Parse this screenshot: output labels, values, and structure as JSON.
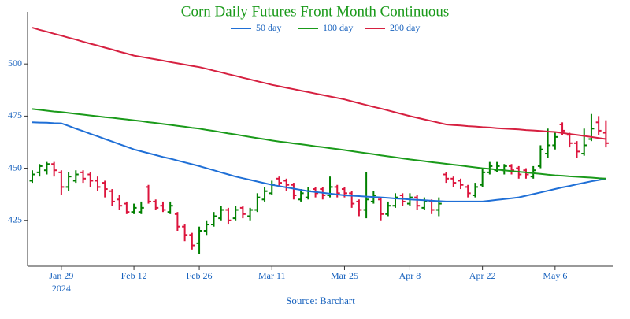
{
  "chart_data": {
    "type": "ohlc",
    "title": "Corn Daily Futures Front Month Continuous",
    "source": "Source: Barchart",
    "year": "2024",
    "categories": [
      null,
      null,
      null,
      null,
      "Jan 29",
      null,
      null,
      null,
      null,
      null,
      null,
      null,
      null,
      null,
      "Feb 12",
      null,
      null,
      null,
      null,
      null,
      null,
      null,
      null,
      "Feb 26",
      null,
      null,
      null,
      null,
      null,
      null,
      null,
      null,
      null,
      "Mar 11",
      null,
      null,
      null,
      null,
      null,
      null,
      null,
      null,
      null,
      "Mar 25",
      null,
      null,
      null,
      null,
      null,
      null,
      null,
      null,
      "Apr 8",
      null,
      null,
      null,
      null,
      null,
      null,
      null,
      null,
      null,
      "Apr 22",
      null,
      null,
      null,
      null,
      null,
      null,
      null,
      null,
      null,
      "May 6",
      null,
      null,
      null,
      null,
      null,
      null,
      null
    ],
    "ohlc": {
      "up_color": "#008000",
      "down_color": "#dc143c",
      "open": [
        444,
        448,
        449,
        452,
        448,
        441,
        444,
        448,
        447,
        444,
        443,
        439,
        435,
        433,
        429,
        429,
        441,
        434,
        432,
        429,
        428,
        422,
        418,
        414,
        420,
        423,
        426,
        430,
        426,
        431,
        427,
        430,
        435,
        438,
        445,
        444,
        442,
        435,
        436,
        440,
        440,
        437,
        441,
        440,
        438,
        434,
        430,
        434,
        435,
        428,
        432,
        437,
        433,
        436,
        431,
        434,
        430,
        447,
        445,
        444,
        441,
        437,
        442,
        448,
        449,
        449,
        451,
        450,
        449,
        446,
        451,
        457,
        461,
        471,
        466,
        462,
        457,
        464,
        472,
        467
      ],
      "high": [
        449,
        452,
        453,
        453,
        449,
        448,
        449,
        449,
        448,
        446,
        444,
        440,
        437,
        434,
        433,
        434,
        442,
        435,
        434,
        434,
        429,
        423,
        419,
        422,
        425,
        429,
        432,
        431,
        432,
        432,
        431,
        438,
        441,
        444,
        446,
        445,
        443,
        440,
        441,
        441,
        441,
        446,
        442,
        441,
        439,
        435,
        448,
        439,
        436,
        434,
        438,
        438,
        438,
        437,
        436,
        435,
        436,
        448,
        446,
        445,
        442,
        443,
        450,
        453,
        453,
        452,
        452,
        451,
        450,
        451,
        461,
        469,
        467,
        472,
        467,
        463,
        469,
        476,
        475,
        473
      ],
      "low": [
        443,
        446,
        447,
        446,
        437,
        439,
        443,
        443,
        441,
        439,
        436,
        432,
        430,
        428,
        428,
        428,
        433,
        430,
        429,
        428,
        420,
        415,
        411,
        409,
        418,
        422,
        425,
        423,
        425,
        426,
        425,
        429,
        434,
        437,
        441,
        439,
        435,
        434,
        435,
        436,
        435,
        436,
        436,
        436,
        431,
        427,
        426,
        433,
        425,
        427,
        431,
        432,
        432,
        430,
        430,
        428,
        427,
        443,
        441,
        440,
        436,
        436,
        441,
        447,
        448,
        447,
        447,
        445,
        445,
        445,
        450,
        455,
        459,
        466,
        460,
        455,
        456,
        463,
        466,
        460
      ],
      "close": [
        447,
        451,
        452,
        449,
        441,
        446,
        447,
        445,
        444,
        441,
        440,
        434,
        432,
        429,
        431,
        431,
        434,
        431,
        430,
        432,
        422,
        418,
        413,
        420,
        423,
        427,
        430,
        425,
        430,
        428,
        430,
        436,
        439,
        442,
        443,
        442,
        437,
        438,
        439,
        438,
        437,
        441,
        438,
        438,
        433,
        430,
        435,
        437,
        428,
        432,
        436,
        434,
        436,
        432,
        434,
        430,
        433,
        445,
        443,
        442,
        438,
        441,
        448,
        451,
        451,
        451,
        449,
        447,
        447,
        449,
        459,
        461,
        465,
        468,
        462,
        458,
        461,
        469,
        468,
        462
      ]
    },
    "series": [
      {
        "name": "50 day",
        "color": "#1f6fd6",
        "values": [
          472,
          471.9,
          471.8,
          471.6,
          471.5,
          470.3,
          469,
          467.8,
          466.5,
          465.3,
          464,
          462.8,
          461.5,
          460.3,
          459,
          458.1,
          457.2,
          456.3,
          455.4,
          454.6,
          453.7,
          452.8,
          451.9,
          451,
          450,
          449,
          448,
          447,
          446,
          445.2,
          444.4,
          443.6,
          442.8,
          442,
          441.4,
          440.8,
          440.2,
          439.6,
          439,
          438.6,
          438.2,
          437.8,
          437.4,
          437,
          436.8,
          436.6,
          436.4,
          436.2,
          436,
          435.8,
          435.5,
          435.3,
          435,
          434.8,
          434.6,
          434.4,
          434.2,
          434,
          434,
          434,
          434,
          434,
          434,
          434.4,
          434.8,
          435.2,
          435.6,
          436,
          436.8,
          437.6,
          438.4,
          439.2,
          440,
          440.8,
          441.5,
          442.3,
          443,
          443.7,
          444.3,
          445
        ]
      },
      {
        "name": "100 day",
        "color": "#1a9a1a",
        "values": [
          478.4,
          478,
          477.6,
          477.2,
          476.9,
          476.5,
          476.1,
          475.7,
          475.3,
          474.9,
          474.5,
          474.2,
          473.8,
          473.4,
          473,
          472.6,
          472.1,
          471.7,
          471.2,
          470.8,
          470.3,
          469.9,
          469.4,
          469,
          468.4,
          467.9,
          467.3,
          466.7,
          466.2,
          465.6,
          465,
          464.4,
          463.9,
          463.3,
          462.8,
          462.4,
          461.9,
          461.5,
          461,
          460.5,
          460.1,
          459.6,
          459.2,
          458.7,
          458.2,
          457.7,
          457.2,
          456.7,
          456.2,
          455.7,
          455.2,
          454.7,
          454.2,
          453.8,
          453.4,
          452.9,
          452.5,
          452.1,
          451.7,
          451.3,
          450.8,
          450.4,
          450,
          449.7,
          449.3,
          449,
          448.6,
          448.3,
          448,
          447.6,
          447.3,
          446.9,
          446.6,
          446.4,
          446.1,
          445.9,
          445.7,
          445.5,
          445.2,
          445
        ]
      },
      {
        "name": "200 day",
        "color": "#d62040",
        "values": [
          517.4,
          516.4,
          515.5,
          514.5,
          513.6,
          512.6,
          511.7,
          510.7,
          509.7,
          508.8,
          507.8,
          506.9,
          505.9,
          505,
          504,
          503.4,
          502.8,
          502.2,
          501.6,
          500.9,
          500.3,
          499.7,
          499.1,
          498.5,
          497.7,
          496.8,
          496,
          495.1,
          494.3,
          493.4,
          492.6,
          491.7,
          490.9,
          490,
          489.3,
          488.6,
          487.9,
          487.2,
          486.5,
          485.8,
          485.1,
          484.4,
          483.7,
          483,
          482.1,
          481.2,
          480.3,
          479.4,
          478.6,
          477.7,
          476.8,
          475.9,
          475,
          474.2,
          473.4,
          472.6,
          471.8,
          471,
          470.7,
          470.5,
          470.2,
          470,
          469.7,
          469.5,
          469.2,
          469,
          468.8,
          468.6,
          468.3,
          468.1,
          467.9,
          467.6,
          467.4,
          466.9,
          466.4,
          466,
          465.5,
          465,
          464.5,
          464
        ]
      }
    ],
    "ylim": [
      403,
      525
    ],
    "yticks": [
      425,
      450,
      475,
      500
    ],
    "title_color": "#1a9a1a",
    "legend": "top"
  }
}
